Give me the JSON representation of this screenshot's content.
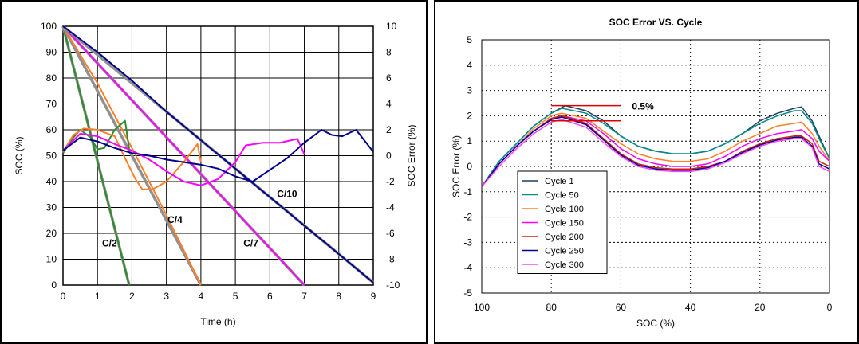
{
  "chart_data": [
    {
      "type": "line",
      "title": "",
      "xlabel": "Time (h)",
      "ylabel": "SOC (%)",
      "y2label": "SOC Error (%)",
      "xlim": [
        0,
        9
      ],
      "ylim": [
        0,
        100
      ],
      "y2lim": [
        -10,
        10
      ],
      "xticks": [
        0,
        1,
        2,
        3,
        4,
        5,
        6,
        7,
        8,
        9
      ],
      "yticks": [
        0,
        10,
        20,
        30,
        40,
        50,
        60,
        70,
        80,
        90,
        100
      ],
      "y2ticks": [
        -10,
        -8,
        -6,
        -4,
        -2,
        0,
        2,
        4,
        6,
        8,
        10
      ],
      "grid": true,
      "soc_series": [
        {
          "name": "C/2",
          "color": "#2e8b2e",
          "x": [
            0,
            1.92
          ],
          "y": [
            100,
            0
          ]
        },
        {
          "name": "C/4",
          "color": "#ff7f27",
          "x": [
            0,
            1,
            2,
            3,
            4
          ],
          "y": [
            100,
            78,
            53,
            27,
            0
          ]
        },
        {
          "name": "C/7",
          "color": "#ff00ff",
          "x": [
            0,
            7
          ],
          "y": [
            100,
            0
          ]
        },
        {
          "name": "C/10",
          "color": "#00008b",
          "x": [
            0,
            1,
            2,
            3,
            4,
            5,
            6,
            7,
            8,
            9
          ],
          "y": [
            100,
            90,
            79,
            67,
            56,
            45,
            34,
            23,
            12,
            1
          ]
        }
      ],
      "error_series": [
        {
          "name": "C/2",
          "color": "#2e8b2e",
          "x": [
            0,
            0.3,
            0.5,
            0.8,
            1.0,
            1.2,
            1.5,
            1.8,
            1.92
          ],
          "y": [
            0.2,
            1.4,
            2.0,
            1.4,
            0.5,
            0.6,
            2.0,
            2.7,
            0.5
          ]
        },
        {
          "name": "C/4",
          "color": "#ff7f27",
          "x": [
            0,
            0.3,
            0.6,
            1.0,
            1.5,
            1.8,
            2.1,
            2.3,
            2.6,
            3.0,
            3.5,
            3.9,
            4.0
          ],
          "y": [
            0.3,
            1.6,
            2.1,
            2.0,
            1.5,
            -0.2,
            -1.8,
            -2.6,
            -2.6,
            -2.0,
            -0.5,
            0.9,
            -0.5
          ]
        },
        {
          "name": "C/7",
          "color": "#ff00ff",
          "x": [
            0,
            0.5,
            1.0,
            1.5,
            2.0,
            2.5,
            3.0,
            3.5,
            4.0,
            4.5,
            5.0,
            5.3,
            5.8,
            6.3,
            6.8,
            7.0
          ],
          "y": [
            0.4,
            1.7,
            1.5,
            0.9,
            0.4,
            -0.3,
            -1.2,
            -2.0,
            -2.3,
            -1.8,
            -0.5,
            0.8,
            1.0,
            1.0,
            1.3,
            0.1
          ]
        },
        {
          "name": "C/10",
          "color": "#00008b",
          "x": [
            0,
            0.5,
            1.0,
            1.5,
            2.0,
            2.5,
            3.0,
            3.5,
            4.0,
            4.5,
            5.0,
            5.5,
            6.0,
            6.5,
            7.0,
            7.5,
            7.8,
            8.1,
            8.5,
            9.0
          ],
          "y": [
            0.4,
            1.4,
            1.1,
            0.6,
            0.2,
            0.0,
            -0.3,
            -0.5,
            -0.7,
            -1.0,
            -1.6,
            -2.0,
            -1.1,
            -0.2,
            1.0,
            2.0,
            1.6,
            1.5,
            2.0,
            0.3
          ]
        }
      ],
      "ideal_color": "#909090",
      "annotations": [
        {
          "text": "C/2",
          "x": 1.35,
          "y": 15,
          "color": "#2e8b2e"
        },
        {
          "text": "C/4",
          "x": 3.25,
          "y": 24,
          "color": "#ff7f27"
        },
        {
          "text": "C/7",
          "x": 5.45,
          "y": 15,
          "color": "#ff00ff"
        },
        {
          "text": "C/10",
          "x": 6.5,
          "y": 34,
          "color": "#0000cc"
        }
      ]
    },
    {
      "type": "line",
      "title": "SOC Error VS. Cycle",
      "xlabel": "SOC (%)",
      "ylabel": "SOC Error (%)",
      "xlim": [
        100,
        0
      ],
      "ylim": [
        -5,
        5
      ],
      "xticks": [
        100,
        80,
        60,
        40,
        20,
        0
      ],
      "yticks": [
        -5,
        -4,
        -3,
        -2,
        -1,
        0,
        1,
        2,
        3,
        4,
        5
      ],
      "grid": true,
      "legend": "bottom-left",
      "series": [
        {
          "name": "Cycle 1",
          "color": "#1f3f5f",
          "x": [
            100,
            95,
            90,
            85,
            80,
            76,
            70,
            65,
            60,
            55,
            50,
            45,
            40,
            35,
            30,
            25,
            20,
            15,
            10,
            8,
            5,
            3,
            0
          ],
          "y": [
            -0.8,
            0.2,
            0.9,
            1.6,
            2.1,
            2.4,
            2.2,
            1.8,
            1.2,
            0.8,
            0.6,
            0.5,
            0.5,
            0.6,
            0.9,
            1.3,
            1.8,
            2.1,
            2.3,
            2.35,
            1.8,
            1.2,
            0.3
          ]
        },
        {
          "name": "Cycle 50",
          "color": "#008b8b",
          "x": [
            100,
            95,
            90,
            85,
            80,
            77,
            70,
            65,
            60,
            55,
            50,
            45,
            40,
            35,
            30,
            25,
            20,
            15,
            10,
            8,
            5,
            3,
            0
          ],
          "y": [
            -0.8,
            0.2,
            0.9,
            1.6,
            2.1,
            2.3,
            2.1,
            1.7,
            1.2,
            0.8,
            0.6,
            0.5,
            0.5,
            0.6,
            0.9,
            1.3,
            1.7,
            2.0,
            2.2,
            2.2,
            1.7,
            1.1,
            0.3
          ]
        },
        {
          "name": "Cycle 100",
          "color": "#ff7f27",
          "x": [
            100,
            95,
            90,
            85,
            80,
            77,
            70,
            65,
            60,
            55,
            50,
            45,
            40,
            35,
            30,
            25,
            20,
            15,
            10,
            8,
            5,
            3,
            0
          ],
          "y": [
            -0.8,
            0.1,
            0.8,
            1.5,
            2.0,
            2.1,
            1.9,
            1.4,
            0.9,
            0.5,
            0.3,
            0.2,
            0.2,
            0.3,
            0.6,
            1.0,
            1.3,
            1.6,
            1.7,
            1.75,
            1.3,
            0.8,
            0.2
          ]
        },
        {
          "name": "Cycle 150",
          "color": "#ff00ff",
          "x": [
            100,
            95,
            90,
            85,
            80,
            77,
            70,
            65,
            60,
            55,
            50,
            45,
            40,
            35,
            30,
            25,
            20,
            15,
            10,
            8,
            5,
            3,
            0
          ],
          "y": [
            -0.8,
            0.1,
            0.8,
            1.4,
            1.9,
            2.0,
            1.8,
            1.3,
            0.7,
            0.3,
            0.1,
            0.0,
            0.0,
            0.1,
            0.4,
            0.8,
            1.1,
            1.3,
            1.4,
            1.45,
            1.1,
            0.6,
            0.2
          ]
        },
        {
          "name": "Cycle 200",
          "color": "#cc2200",
          "x": [
            100,
            95,
            90,
            85,
            80,
            77,
            70,
            65,
            60,
            55,
            50,
            45,
            40,
            35,
            30,
            25,
            20,
            15,
            10,
            8,
            5,
            3,
            0
          ],
          "y": [
            -0.8,
            0.1,
            0.8,
            1.4,
            1.9,
            2.0,
            1.7,
            1.1,
            0.5,
            0.1,
            -0.05,
            -0.1,
            -0.1,
            0.0,
            0.2,
            0.6,
            0.9,
            1.1,
            1.2,
            1.2,
            0.9,
            0.2,
            0.0
          ]
        },
        {
          "name": "Cycle 250",
          "color": "#000099",
          "x": [
            100,
            95,
            90,
            85,
            80,
            77,
            70,
            65,
            60,
            55,
            50,
            45,
            40,
            35,
            30,
            25,
            20,
            15,
            10,
            8,
            5,
            3,
            0
          ],
          "y": [
            -0.8,
            0.1,
            0.8,
            1.4,
            1.85,
            1.95,
            1.65,
            1.05,
            0.45,
            0.05,
            -0.1,
            -0.15,
            -0.15,
            -0.05,
            0.2,
            0.55,
            0.85,
            1.05,
            1.15,
            1.15,
            0.8,
            0.1,
            -0.1
          ]
        },
        {
          "name": "Cycle 300",
          "color": "#ff44ff",
          "x": [
            100,
            95,
            90,
            85,
            80,
            77,
            70,
            65,
            60,
            55,
            50,
            45,
            40,
            35,
            30,
            25,
            20,
            15,
            10,
            8,
            5,
            3,
            0
          ],
          "y": [
            -0.8,
            0.0,
            0.7,
            1.3,
            1.75,
            1.85,
            1.55,
            0.95,
            0.4,
            0.0,
            -0.15,
            -0.2,
            -0.2,
            -0.1,
            0.15,
            0.5,
            0.8,
            1.0,
            1.1,
            1.1,
            0.75,
            0.0,
            -0.2
          ]
        }
      ],
      "annotation": {
        "text": "0.5%",
        "color": "#dd0000",
        "upper_y": 2.4,
        "lower_y": 1.8,
        "x_from": 80,
        "x_to": 60
      }
    }
  ]
}
